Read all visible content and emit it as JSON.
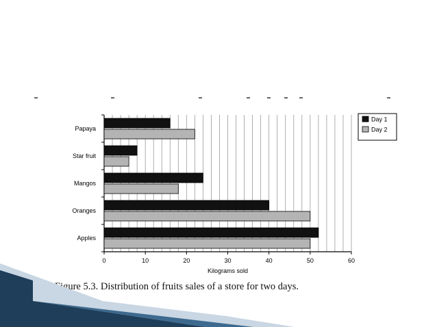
{
  "slide": {
    "caption": "Figure 5.3. Distribution of fruits sales of a store for two days."
  },
  "colors": {
    "day1": "#111111",
    "day2": "#b4b4b4",
    "grid": "#9a9a9a",
    "swoosh_dark": "#1f3e5a",
    "swoosh_light": "#c9d6e3"
  },
  "chart_data": {
    "type": "bar",
    "orientation": "horizontal",
    "categories": [
      "Papaya",
      "Star fruit",
      "Mangos",
      "Oranges",
      "Apples"
    ],
    "series": [
      {
        "name": "Day 1",
        "values": [
          16,
          8,
          24,
          40,
          52
        ]
      },
      {
        "name": "Day 2",
        "values": [
          22,
          6,
          18,
          50,
          50
        ]
      }
    ],
    "xlabel": "Kilograms sold",
    "xlim": [
      0,
      60
    ],
    "xticks": [
      0,
      10,
      20,
      30,
      40,
      50,
      60
    ],
    "grid": true,
    "legend_position": "top-right"
  }
}
